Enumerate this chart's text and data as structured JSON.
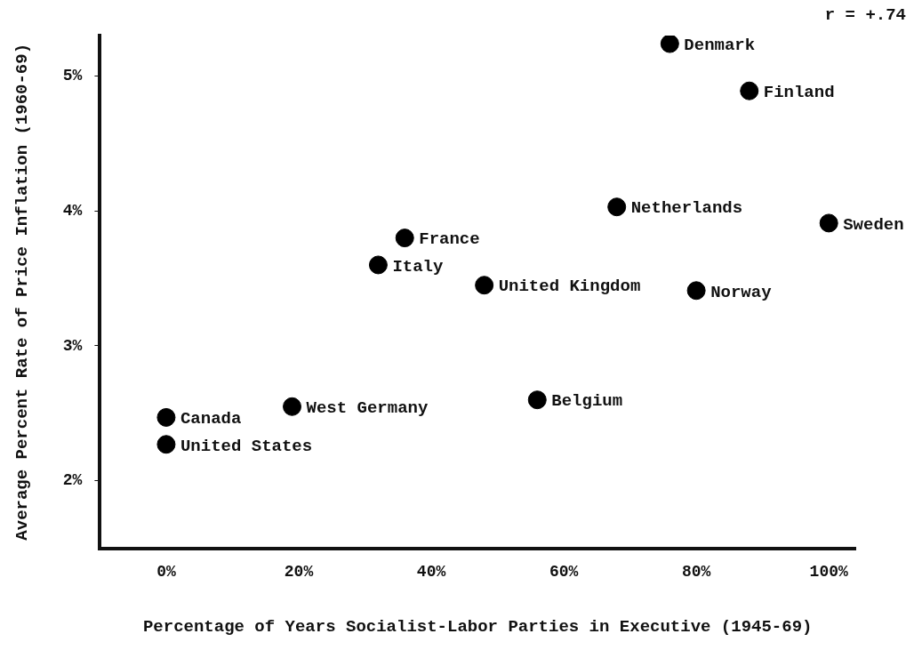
{
  "chart_data": {
    "type": "scatter",
    "xlabel": "Percentage of Years Socialist-Labor Parties in Executive (1945-69)",
    "ylabel": "Average Percent Rate of Price Inflation (1960-69)",
    "x": [
      0,
      0,
      19,
      32,
      36,
      48,
      56,
      68,
      76,
      88,
      80,
      100
    ],
    "series": [
      {
        "color": "#000000",
        "values": [
          2.47,
          2.27,
          2.55,
          3.6,
          3.8,
          3.45,
          2.6,
          4.03,
          5.24,
          4.89,
          3.41,
          3.91
        ]
      }
    ],
    "xlim": [
      -10,
      104
    ],
    "ylim": [
      1.5,
      5.3
    ],
    "xticks": [
      {
        "value": 0,
        "label": "0%"
      },
      {
        "value": 20,
        "label": "20%"
      },
      {
        "value": 40,
        "label": "40%"
      },
      {
        "value": 60,
        "label": "60%"
      },
      {
        "value": 80,
        "label": "80%"
      },
      {
        "value": 100,
        "label": "100%"
      }
    ],
    "yticks": [
      {
        "value": 2,
        "label": "2%"
      },
      {
        "value": 3,
        "label": "3%"
      },
      {
        "value": 4,
        "label": "4%"
      },
      {
        "value": 5,
        "label": "5%"
      }
    ],
    "grid": false,
    "legend": false,
    "marker": "circle",
    "annotations": [
      {
        "text": "Canada",
        "x": 0,
        "y": 2.47
      },
      {
        "text": "United States",
        "x": 0,
        "y": 2.27
      },
      {
        "text": "West Germany",
        "x": 19,
        "y": 2.55
      },
      {
        "text": "Italy",
        "x": 32,
        "y": 3.6
      },
      {
        "text": "France",
        "x": 36,
        "y": 3.8
      },
      {
        "text": "United Kingdom",
        "x": 48,
        "y": 3.45
      },
      {
        "text": "Belgium",
        "x": 56,
        "y": 2.6
      },
      {
        "text": "Netherlands",
        "x": 68,
        "y": 4.03
      },
      {
        "text": "Denmark",
        "x": 76,
        "y": 5.24
      },
      {
        "text": "Finland",
        "x": 88,
        "y": 4.89
      },
      {
        "text": "Norway",
        "x": 80,
        "y": 3.41
      },
      {
        "text": "Sweden",
        "x": 100,
        "y": 3.91
      },
      "r = +.74"
    ]
  }
}
